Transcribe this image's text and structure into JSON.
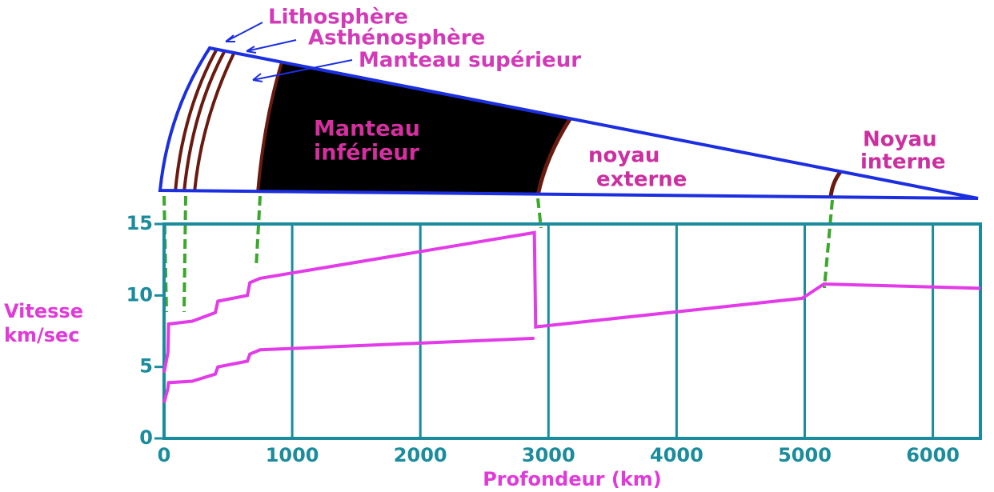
{
  "chart_data": {
    "type": "line",
    "x_label": "Profondeur (km)",
    "y_label": [
      "Vitesse",
      "km/sec"
    ],
    "x": [
      0,
      30,
      35,
      220,
      400,
      420,
      650,
      670,
      750,
      2890,
      2900,
      4980,
      5150,
      6371
    ],
    "series": [
      {
        "color": "#e23be8",
        "values": [
          4.6,
          6.0,
          8.0,
          8.2,
          8.8,
          9.6,
          10.0,
          10.9,
          11.2,
          14.4,
          7.8,
          9.8,
          10.8,
          10.5
        ]
      },
      {
        "color": "#e23be8",
        "values": [
          2.5,
          3.5,
          3.9,
          4.0,
          4.5,
          5.0,
          5.4,
          5.9,
          6.2,
          7.0,
          null,
          null,
          null,
          null
        ]
      }
    ],
    "xlim": [
      0,
      6371
    ],
    "xticks": [
      0,
      1000,
      2000,
      3000,
      4000,
      5000,
      6000
    ],
    "ylim": [
      0,
      15
    ],
    "yticks": [
      0,
      5,
      10,
      15
    ],
    "grid": true
  },
  "diagram": {
    "labels": {
      "lithosphere": "Lithosphère",
      "asthenosphere": "Asthénosphère",
      "upper_mantle": "Manteau supérieur",
      "lower_mantle": [
        "Manteau",
        "inférieur"
      ],
      "outer_core": [
        "noyau",
        "externe"
      ],
      "inner_core": [
        "Noyau",
        "interne"
      ]
    }
  }
}
